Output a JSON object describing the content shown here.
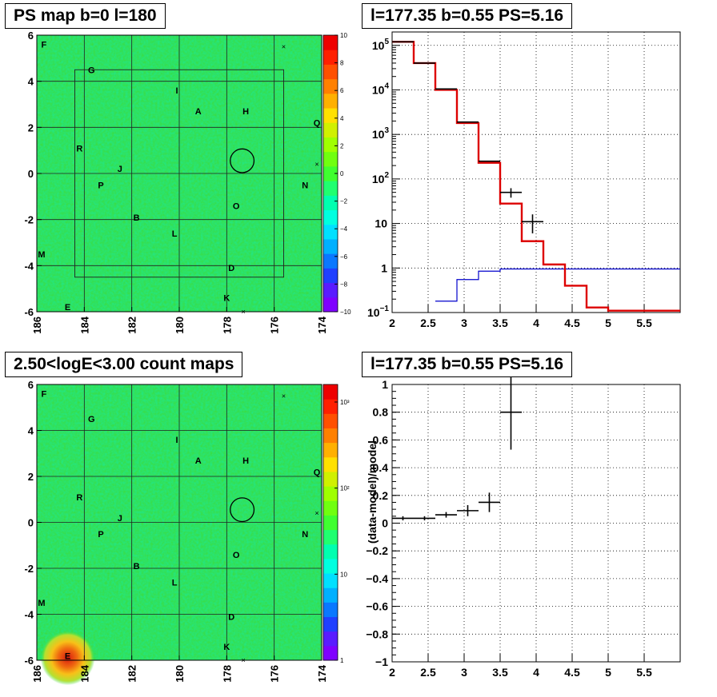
{
  "panels": {
    "ps_map_title": "PS map b=0 l=180",
    "count_map_title": "2.50<logE<3.00 count maps",
    "spectrum_title": "l=177.35 b=0.55 PS=5.16",
    "residual_title": "l=177.35 b=0.55 PS=5.16"
  },
  "colors": {
    "data": "#000000",
    "model": "#dd0000",
    "background_model": "#0000cc",
    "map_base": "#3ddc3a"
  },
  "chart_data": [
    {
      "type": "heatmap",
      "title": "PS map b=0 l=180",
      "x_ticks": [
        "186",
        "184",
        "182",
        "180",
        "178",
        "176",
        "174"
      ],
      "y_ticks": [
        "-6",
        "-4",
        "-2",
        "0",
        "2",
        "4",
        "6"
      ],
      "xlim": [
        186,
        174
      ],
      "ylim": [
        -6,
        6
      ],
      "colorbar": {
        "scale": "linear",
        "range": [
          -10,
          10
        ],
        "ticks": [
          "10",
          "8",
          "6",
          "4",
          "2",
          "0",
          "−2",
          "−4",
          "−6",
          "−8",
          "−10"
        ]
      },
      "grid": true,
      "source_labels": [
        {
          "text": "F",
          "l": 185.7,
          "b": 5.6
        },
        {
          "text": "G",
          "l": 183.7,
          "b": 4.5
        },
        {
          "text": "I",
          "l": 180.1,
          "b": 3.6
        },
        {
          "text": "A",
          "l": 179.2,
          "b": 2.7
        },
        {
          "text": "H",
          "l": 177.2,
          "b": 2.7
        },
        {
          "text": "Q",
          "l": 174.2,
          "b": 2.2
        },
        {
          "text": "R",
          "l": 184.2,
          "b": 1.1
        },
        {
          "text": "J",
          "l": 182.5,
          "b": 0.2
        },
        {
          "text": "P",
          "l": 183.3,
          "b": -0.5
        },
        {
          "text": "N",
          "l": 174.7,
          "b": -0.5
        },
        {
          "text": "O",
          "l": 177.6,
          "b": -1.4
        },
        {
          "text": "B",
          "l": 181.8,
          "b": -1.9
        },
        {
          "text": "L",
          "l": 180.2,
          "b": -2.6
        },
        {
          "text": "M",
          "l": 185.8,
          "b": -3.5
        },
        {
          "text": "D",
          "l": 177.8,
          "b": -4.1
        },
        {
          "text": "K",
          "l": 178.0,
          "b": -5.4
        },
        {
          "text": "E",
          "l": 184.7,
          "b": -5.8
        }
      ],
      "circle": {
        "l": 177.35,
        "b": 0.55,
        "r": 0.5
      },
      "roi_box": {
        "l_min": 175.6,
        "l_max": 184.4,
        "b_min": -4.5,
        "b_max": 4.5
      },
      "cross_marks": [
        {
          "l": 175.6,
          "b": 5.5
        },
        {
          "l": 174.2,
          "b": 0.4
        },
        {
          "l": 177.3,
          "b": -6.0
        }
      ]
    },
    {
      "type": "line",
      "title": "l=177.35 b=0.55 PS=5.16",
      "xlim": [
        2,
        6
      ],
      "ylim": [
        0.1,
        200000
      ],
      "yscale": "log",
      "x_ticks": [
        "2",
        "2.5",
        "3",
        "3.5",
        "4",
        "4.5",
        "5",
        "5.5"
      ],
      "y_ticks": [
        "10^-1",
        "1",
        "10",
        "10^2",
        "10^3",
        "10^4",
        "10^5"
      ],
      "grid": true,
      "series": [
        {
          "style": "step",
          "edges": [
            2.0,
            2.3,
            2.6,
            2.9,
            3.2,
            3.5,
            3.8,
            4.1,
            4.4,
            4.7,
            5.0,
            5.3,
            6.0
          ],
          "values": [
            120000,
            40000,
            10000,
            1800,
            230,
            28,
            4,
            1.2,
            0.4,
            0.13,
            0.11,
            0.11
          ]
        },
        {
          "style": "step",
          "edges": [
            2.6,
            2.9,
            3.2,
            3.5,
            6.0
          ],
          "values": [
            0.18,
            0.55,
            0.85,
            0.95
          ]
        },
        {
          "style": "errorbar",
          "x": [
            2.15,
            2.45,
            2.75,
            3.05,
            3.35,
            3.65,
            3.95
          ],
          "y": [
            120000,
            40000,
            10500,
            1900,
            250,
            50,
            11
          ],
          "xerr": 0.15,
          "yerr_lo": [
            0,
            0,
            0,
            0,
            0,
            12,
            5
          ],
          "yerr_hi": [
            0,
            0,
            0,
            0,
            0,
            12,
            5
          ]
        }
      ]
    },
    {
      "type": "scatter",
      "title": "l=177.35 b=0.55 PS=5.16",
      "ylabel": "(data-model)/model",
      "xlim": [
        2,
        6
      ],
      "ylim": [
        -1,
        1
      ],
      "x_ticks": [
        "2",
        "2.5",
        "3",
        "3.5",
        "4",
        "4.5",
        "5",
        "5.5"
      ],
      "y_ticks": [
        "−1",
        "−0.8",
        "−0.6",
        "−0.4",
        "−0.2",
        "0",
        "0.2",
        "0.4",
        "0.6",
        "0.8",
        "1"
      ],
      "grid": true,
      "points": [
        {
          "x": 2.15,
          "y": 0.035,
          "xerr": 0.15,
          "yerr": 0.015
        },
        {
          "x": 2.45,
          "y": 0.035,
          "xerr": 0.15,
          "yerr": 0.015
        },
        {
          "x": 2.75,
          "y": 0.06,
          "xerr": 0.15,
          "yerr": 0.02
        },
        {
          "x": 3.05,
          "y": 0.09,
          "xerr": 0.15,
          "yerr": 0.04
        },
        {
          "x": 3.35,
          "y": 0.15,
          "xerr": 0.15,
          "yerr": 0.07
        },
        {
          "x": 3.65,
          "y": 0.8,
          "xerr": 0.15,
          "yerr": 0.27
        }
      ]
    }
  ]
}
